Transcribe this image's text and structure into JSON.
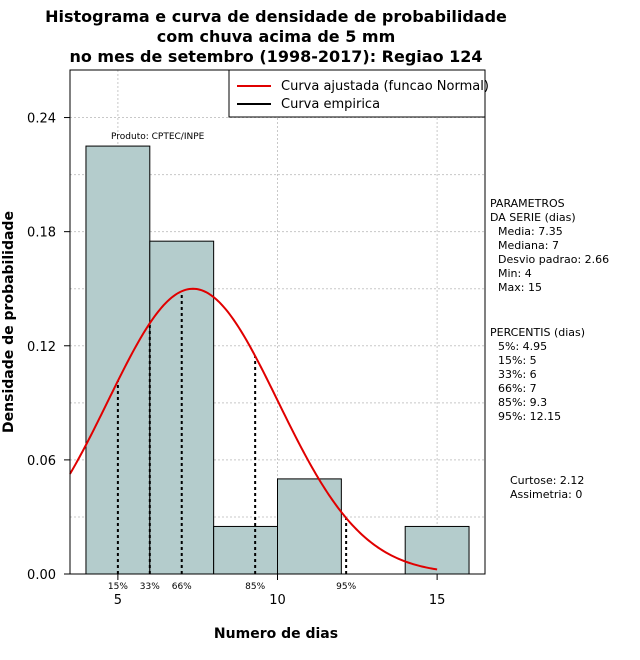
{
  "chart_data": {
    "type": "histogram",
    "title_lines": [
      "Histograma e curva de densidade de probabilidade",
      "com chuva acima de 5 mm",
      "no mes de setembro (1998-2017): Regiao 124"
    ],
    "xlabel": "Numero de dias",
    "ylabel": "Densidade de probabilidade",
    "xlim": [
      3.5,
      16.5
    ],
    "ylim": [
      0,
      0.265
    ],
    "x_ticks": [
      5,
      10,
      15
    ],
    "y_ticks": [
      0.0,
      0.06,
      0.12,
      0.18,
      0.24
    ],
    "y_tick_labels": [
      "0.00",
      "0.06",
      "0.12",
      "0.18",
      "0.24"
    ],
    "grid": true,
    "bins": [
      {
        "x0": 4,
        "x1": 6,
        "density": 0.225
      },
      {
        "x0": 6,
        "x1": 8,
        "density": 0.175
      },
      {
        "x0": 8,
        "x1": 10,
        "density": 0.025
      },
      {
        "x0": 10,
        "x1": 12,
        "density": 0.05
      },
      {
        "x0": 12,
        "x1": 14,
        "density": 0.0
      },
      {
        "x0": 14,
        "x1": 16,
        "density": 0.025
      }
    ],
    "bar_color": "#b4cccc",
    "normal_curve": {
      "mean": 7.35,
      "sd": 2.66,
      "color": "#e00000",
      "x_from": 3.5,
      "x_to": 15
    },
    "percentile_lines": [
      {
        "label": "15%",
        "x": 5
      },
      {
        "label": "33%",
        "x": 6
      },
      {
        "label": "66%",
        "x": 7
      },
      {
        "label": "85%",
        "x": 9.3
      },
      {
        "label": "95%",
        "x": 12.15
      }
    ],
    "annotation": "Produto: CPTEC/INPE",
    "legend": {
      "position": "top-right",
      "entries": [
        {
          "label": "Curva ajustada (funcao Normal)",
          "color": "#e00000"
        },
        {
          "label": "Curva empirica",
          "color": "#000000"
        }
      ]
    }
  },
  "side_panel": {
    "params_title_1": "PARAMETROS",
    "params_title_2": "DA SERIE (dias)",
    "media": "Media: 7.35",
    "mediana": "Mediana: 7",
    "desvio": "Desvio padrao: 2.66",
    "min": "Min: 4",
    "max": "Max: 15",
    "percentis_title": "PERCENTIS (dias)",
    "p5": "5%: 4.95",
    "p15": "15%: 5",
    "p33": "33%: 6",
    "p66": "66%: 7",
    "p85": "85%: 9.3",
    "p95": "95%: 12.15",
    "curtose": "Curtose: 2.12",
    "assimetria": "Assimetria: 0"
  }
}
